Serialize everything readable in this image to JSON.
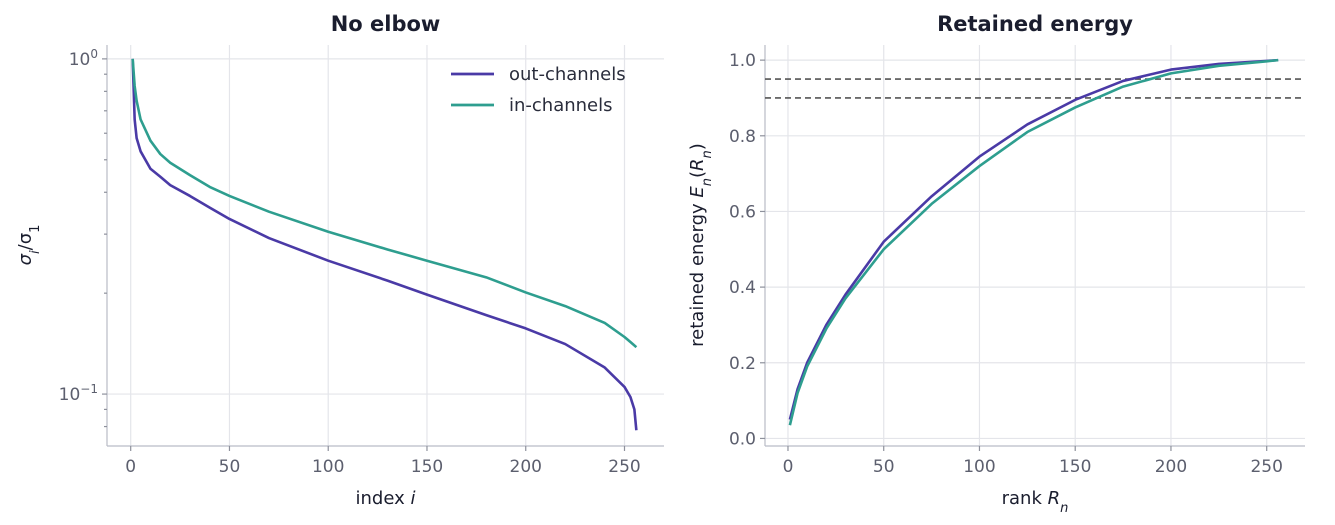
{
  "colors": {
    "out": "#4a3aa6",
    "in": "#2e9e8f",
    "ref": "#555555"
  },
  "chart_data": [
    {
      "type": "line",
      "title": "No elbow",
      "xlabel_text": "index",
      "xlabel_var": "i",
      "ylabel_var": "σ",
      "ylabel_sub": "i",
      "ylabel_sep": "/σ",
      "ylabel_sub2": "1",
      "yscale": "log",
      "xlim": [
        -12,
        270
      ],
      "ylim": [
        0.07,
        1.1
      ],
      "xticks": [
        0,
        50,
        100,
        150,
        200,
        250
      ],
      "xticklabels": [
        "0",
        "50",
        "100",
        "150",
        "200",
        "250"
      ],
      "yticks": [
        1,
        0.1
      ],
      "yticklabels": [
        {
          "base": "10",
          "exp": "0"
        },
        {
          "base": "10",
          "exp": "−1"
        }
      ],
      "legend_position": "top-right",
      "series": [
        {
          "name": "out-channels",
          "x": [
            1,
            2,
            3,
            5,
            10,
            15,
            20,
            30,
            40,
            50,
            70,
            100,
            130,
            150,
            180,
            200,
            220,
            240,
            250,
            253,
            255,
            256
          ],
          "y": [
            1.0,
            0.66,
            0.58,
            0.53,
            0.47,
            0.445,
            0.42,
            0.39,
            0.36,
            0.333,
            0.292,
            0.25,
            0.218,
            0.198,
            0.172,
            0.157,
            0.141,
            0.12,
            0.105,
            0.098,
            0.09,
            0.078
          ]
        },
        {
          "name": "in-channels",
          "x": [
            1,
            2,
            3,
            5,
            10,
            15,
            20,
            30,
            40,
            50,
            70,
            100,
            130,
            150,
            180,
            200,
            220,
            240,
            250,
            253,
            256
          ],
          "y": [
            1.0,
            0.83,
            0.75,
            0.66,
            0.57,
            0.52,
            0.49,
            0.45,
            0.415,
            0.39,
            0.35,
            0.305,
            0.27,
            0.25,
            0.223,
            0.201,
            0.183,
            0.163,
            0.148,
            0.143,
            0.138
          ]
        }
      ]
    },
    {
      "type": "line",
      "title": "Retained energy",
      "xlabel_text": "rank",
      "xlabel_var": "R",
      "xlabel_sub": "n",
      "ylabel_text": "retained energy",
      "ylabel_var": "E",
      "ylabel_sub": "n",
      "ylabel_arg_var": "R",
      "ylabel_arg_sub": "n",
      "xlim": [
        -12,
        270
      ],
      "ylim": [
        -0.02,
        1.04
      ],
      "xticks": [
        0,
        50,
        100,
        150,
        200,
        250
      ],
      "xticklabels": [
        "0",
        "50",
        "100",
        "150",
        "200",
        "250"
      ],
      "yticks": [
        0,
        0.2,
        0.4,
        0.6,
        0.8,
        1.0
      ],
      "yticklabels": [
        "0.0",
        "0.2",
        "0.4",
        "0.6",
        "0.8",
        "1.0"
      ],
      "reference_lines": [
        0.9,
        0.95
      ],
      "series": [
        {
          "x": [
            1,
            5,
            10,
            20,
            30,
            50,
            75,
            100,
            125,
            150,
            175,
            200,
            225,
            250,
            256
          ],
          "y": [
            0.05,
            0.13,
            0.2,
            0.3,
            0.38,
            0.52,
            0.64,
            0.745,
            0.83,
            0.895,
            0.945,
            0.975,
            0.99,
            0.998,
            1.0
          ]
        },
        {
          "x": [
            1,
            5,
            10,
            20,
            30,
            50,
            75,
            100,
            125,
            150,
            175,
            200,
            225,
            250,
            256
          ],
          "y": [
            0.035,
            0.12,
            0.19,
            0.29,
            0.37,
            0.5,
            0.62,
            0.72,
            0.81,
            0.875,
            0.93,
            0.965,
            0.985,
            0.997,
            1.0
          ]
        }
      ]
    }
  ]
}
